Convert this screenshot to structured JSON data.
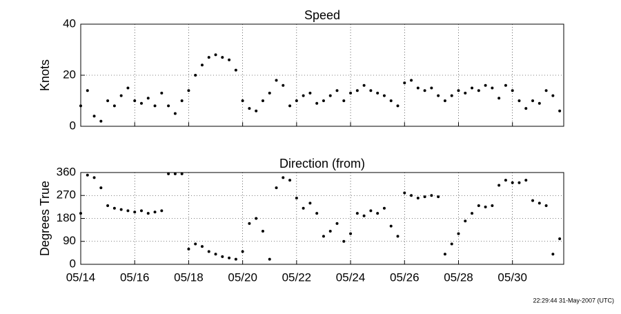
{
  "chart_data": [
    {
      "type": "scatter",
      "title": "Speed",
      "ylabel": "Knots",
      "color": "#000000",
      "grid": true,
      "xlim": [
        14,
        31.9
      ],
      "ylim": [
        0,
        40
      ],
      "yticks": [
        0,
        20,
        40
      ],
      "x": [
        14.0,
        14.25,
        14.5,
        14.75,
        15.0,
        15.25,
        15.5,
        15.75,
        16.0,
        16.25,
        16.5,
        16.75,
        17.0,
        17.25,
        17.5,
        17.75,
        18.0,
        18.25,
        18.5,
        18.75,
        19.0,
        19.25,
        19.5,
        19.75,
        20.0,
        20.25,
        20.5,
        20.75,
        21.0,
        21.25,
        21.5,
        21.75,
        22.0,
        22.25,
        22.5,
        22.75,
        23.0,
        23.25,
        23.5,
        23.75,
        24.0,
        24.25,
        24.5,
        24.75,
        25.0,
        25.25,
        25.5,
        25.75,
        26.0,
        26.25,
        26.5,
        26.75,
        27.0,
        27.25,
        27.5,
        27.75,
        28.0,
        28.25,
        28.5,
        28.75,
        29.0,
        29.25,
        29.5,
        29.75,
        30.0,
        30.25,
        30.5,
        30.75,
        31.0,
        31.25,
        31.5,
        31.75
      ],
      "values": [
        8,
        14,
        4,
        2,
        10,
        8,
        12,
        15,
        10,
        9,
        11,
        8,
        13,
        8,
        5,
        10,
        14,
        20,
        24,
        27,
        28,
        27,
        26,
        22,
        10,
        7,
        6,
        10,
        13,
        18,
        16,
        8,
        10,
        12,
        13,
        9,
        10,
        12,
        14,
        10,
        13,
        14,
        16,
        14,
        13,
        12,
        10,
        8,
        17,
        18,
        15,
        14,
        15,
        12,
        10,
        12,
        14,
        13,
        15,
        14,
        16,
        15,
        11,
        16,
        14,
        10,
        7,
        10,
        9,
        14,
        12,
        6
      ]
    },
    {
      "type": "scatter",
      "title": "Direction (from)",
      "ylabel": "Degrees True",
      "color": "#000000",
      "grid": true,
      "xlim": [
        14,
        31.9
      ],
      "ylim": [
        0,
        360
      ],
      "yticks": [
        0,
        90,
        180,
        270,
        360
      ],
      "xticks": [
        {
          "value": 14,
          "label": "05/14"
        },
        {
          "value": 16,
          "label": "05/16"
        },
        {
          "value": 18,
          "label": "05/18"
        },
        {
          "value": 20,
          "label": "05/20"
        },
        {
          "value": 22,
          "label": "05/22"
        },
        {
          "value": 24,
          "label": "05/24"
        },
        {
          "value": 26,
          "label": "05/26"
        },
        {
          "value": 28,
          "label": "05/28"
        },
        {
          "value": 30,
          "label": "05/30"
        }
      ],
      "x": [
        14.0,
        14.25,
        14.5,
        14.75,
        15.0,
        15.25,
        15.5,
        15.75,
        16.0,
        16.25,
        16.5,
        16.75,
        17.0,
        17.25,
        17.5,
        17.75,
        18.0,
        18.25,
        18.5,
        18.75,
        19.0,
        19.25,
        19.5,
        19.75,
        20.0,
        20.25,
        20.5,
        20.75,
        21.0,
        21.25,
        21.5,
        21.75,
        22.0,
        22.25,
        22.5,
        22.75,
        23.0,
        23.25,
        23.5,
        23.75,
        24.0,
        24.25,
        24.5,
        24.75,
        25.0,
        25.25,
        25.5,
        25.75,
        26.0,
        26.25,
        26.5,
        26.75,
        27.0,
        27.25,
        27.5,
        27.75,
        28.0,
        28.25,
        28.5,
        28.75,
        29.0,
        29.25,
        29.5,
        29.75,
        30.0,
        30.25,
        30.5,
        30.75,
        31.0,
        31.25,
        31.5,
        31.75
      ],
      "values": [
        200,
        350,
        340,
        300,
        230,
        220,
        215,
        210,
        205,
        210,
        200,
        205,
        210,
        355,
        355,
        355,
        60,
        80,
        70,
        50,
        40,
        30,
        25,
        20,
        50,
        160,
        180,
        130,
        20,
        300,
        340,
        330,
        260,
        220,
        240,
        200,
        110,
        130,
        160,
        90,
        120,
        200,
        190,
        210,
        200,
        220,
        150,
        110,
        280,
        270,
        260,
        265,
        270,
        265,
        40,
        80,
        120,
        170,
        200,
        230,
        225,
        230,
        310,
        330,
        320,
        320,
        330,
        250,
        240,
        230,
        40,
        100
      ]
    }
  ],
  "footer": "22:29:44 31-May-2007 (UTC)"
}
